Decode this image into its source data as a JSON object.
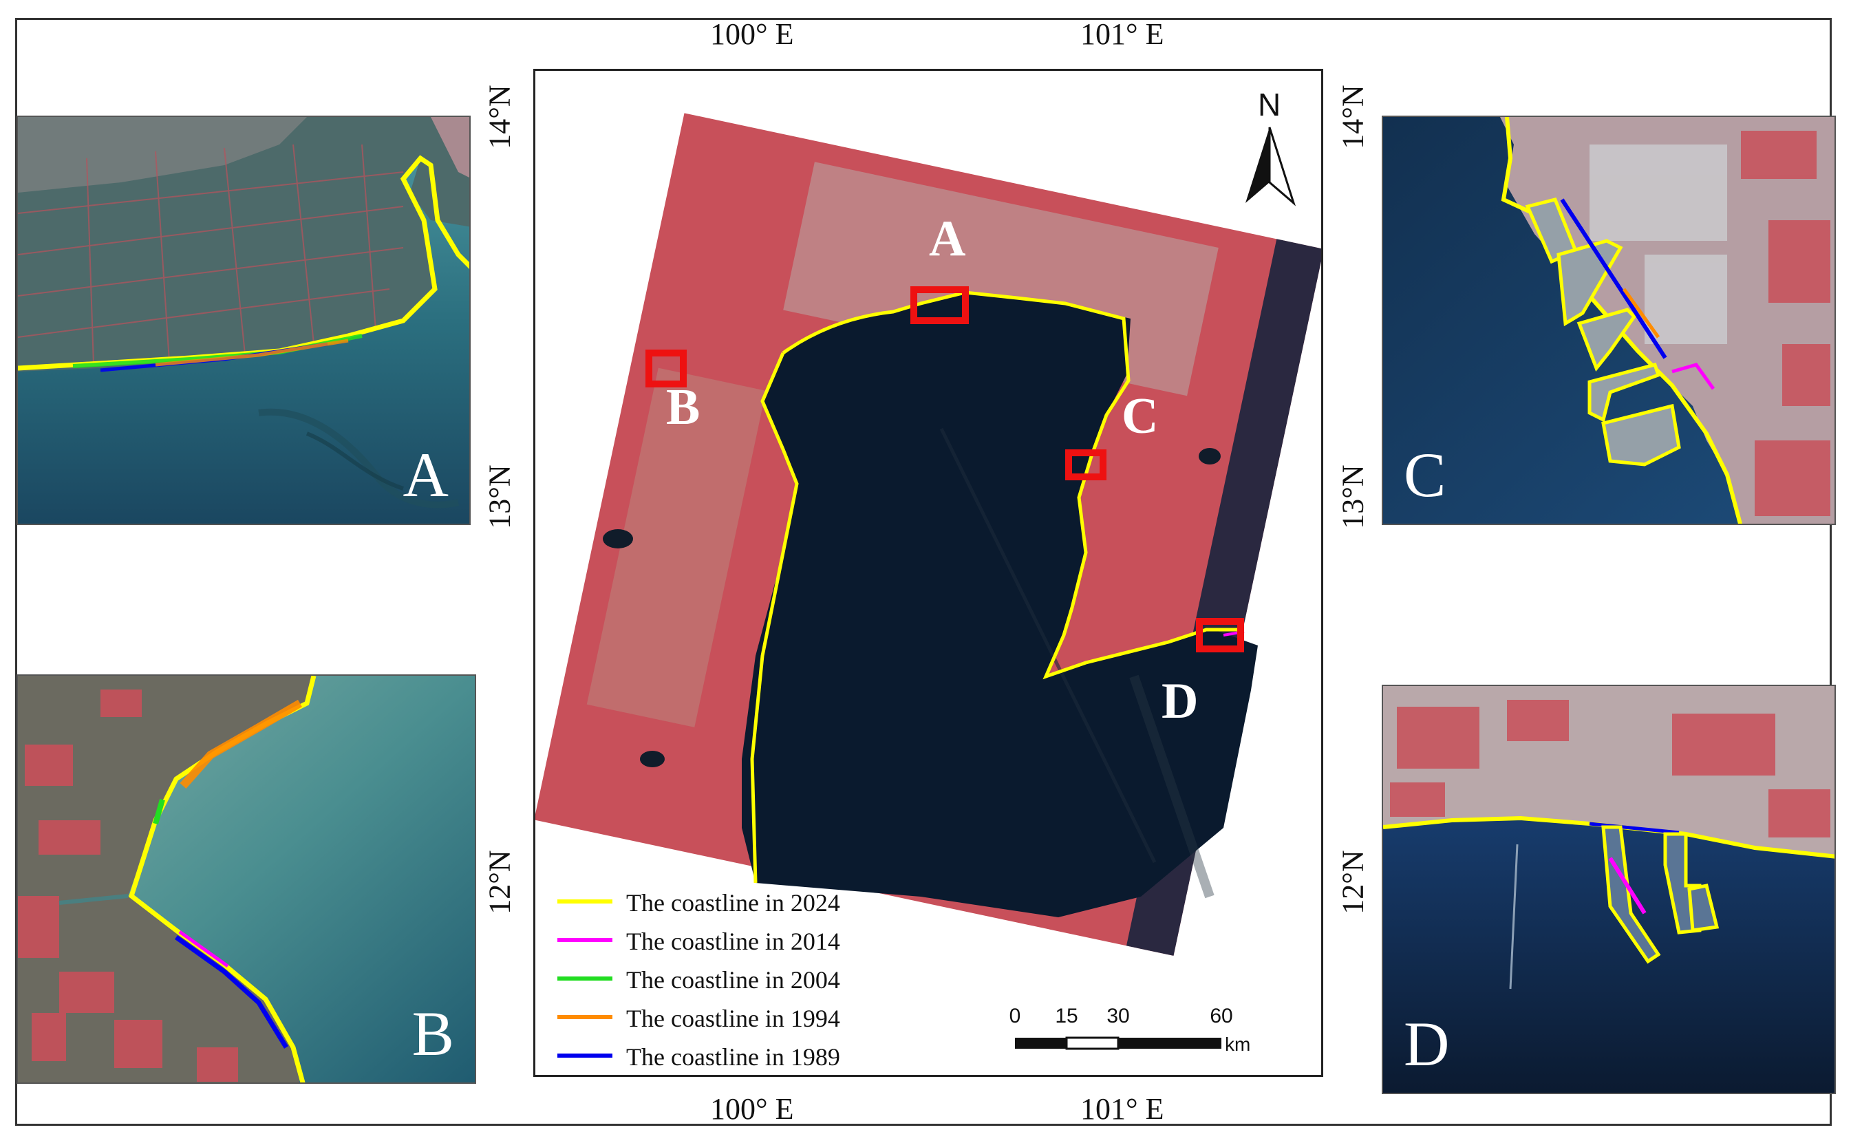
{
  "coords": {
    "lon_100": "100° E",
    "lon_101": "101° E",
    "lat_14": "14°N",
    "lat_13": "13°N",
    "lat_12": "12°N"
  },
  "map": {
    "north_label": "N",
    "labels": {
      "a": "A",
      "b": "B",
      "c": "C",
      "d": "D"
    }
  },
  "insets": {
    "a": {
      "letter": "A"
    },
    "b": {
      "letter": "B"
    },
    "c": {
      "letter": "C"
    },
    "d": {
      "letter": "D"
    }
  },
  "legend": [
    {
      "label": "The coastline in 2024",
      "color": "#ffff00"
    },
    {
      "label": "The coastline in 2014",
      "color": "#ff00ff"
    },
    {
      "label": "The coastline in 2004",
      "color": "#22dd22"
    },
    {
      "label": "The coastline in 1994",
      "color": "#ff8c00"
    },
    {
      "label": "The coastline in 1989",
      "color": "#0000ee"
    }
  ],
  "scale_bar": {
    "ticks": [
      "0",
      "15",
      "30",
      "60"
    ],
    "unit": "km"
  },
  "colors": {
    "land": "#c8505a",
    "urban": "#b8a9a8",
    "water_deep": "#0a1a2e",
    "water_inset": "#2c6f7e",
    "highlight_box": "#ee1111"
  }
}
